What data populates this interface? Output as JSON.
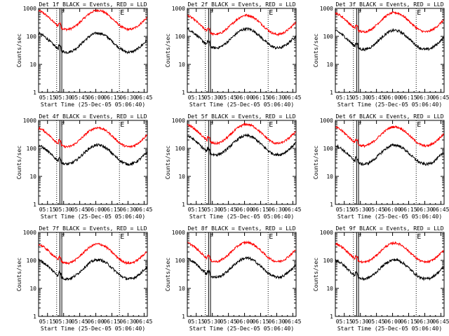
{
  "colors": {
    "events": "#000000",
    "lld": "#ff0000",
    "axes": "#000000"
  },
  "chart_data": {
    "type": "line",
    "layout": "3x3 grid",
    "xlabel": "Start Time (25-Dec-05 05:06:40)",
    "ylabel": "Counts/sec",
    "x_tick_labels": [
      "05:15",
      "05:30",
      "05:45",
      "06:00",
      "06:15",
      "06:30",
      "06:45"
    ],
    "x_tick_minutes": [
      15,
      30,
      45,
      60,
      75,
      90,
      105
    ],
    "xlim_minutes": [
      6.67,
      108
    ],
    "y_scale": "log",
    "ylim": [
      1,
      1000
    ],
    "y_tick_labels": [
      "1",
      "10",
      "100",
      "1000"
    ],
    "y_tick_values": [
      1,
      10,
      100,
      1000
    ],
    "series_names": [
      "Events",
      "LLD"
    ],
    "event_lines": {
      "solid_minutes": [
        26.5,
        28.3
      ],
      "dotted_minutes": [
        23.5,
        82
      ],
      "markers": [
        {
          "label": "F",
          "minute": 26.5
        },
        {
          "label": "E",
          "minute": 82
        }
      ]
    },
    "detectors": [
      {
        "title": "Det 1f BLACK = Events, RED = LLD",
        "events_base": 60,
        "lld_base": 390
      },
      {
        "title": "Det 2f BLACK = Events, RED = LLD",
        "events_base": 85,
        "lld_base": 260
      },
      {
        "title": "Det 3f BLACK = Events, RED = LLD",
        "events_base": 75,
        "lld_base": 320
      },
      {
        "title": "Det 4f BLACK = Events, RED = LLD",
        "events_base": 60,
        "lld_base": 250
      },
      {
        "title": "Det 5f BLACK = Events, RED = LLD",
        "events_base": 130,
        "lld_base": 330
      },
      {
        "title": "Det 6f BLACK = Events, RED = LLD",
        "events_base": 60,
        "lld_base": 270
      },
      {
        "title": "Det 7f BLACK = Events, RED = LLD",
        "events_base": 48,
        "lld_base": 175
      },
      {
        "title": "Det 8f BLACK = Events, RED = LLD",
        "events_base": 55,
        "lld_base": 200
      },
      {
        "title": "Det 9f BLACK = Events, RED = LLD",
        "events_base": 48,
        "lld_base": 190
      }
    ]
  }
}
